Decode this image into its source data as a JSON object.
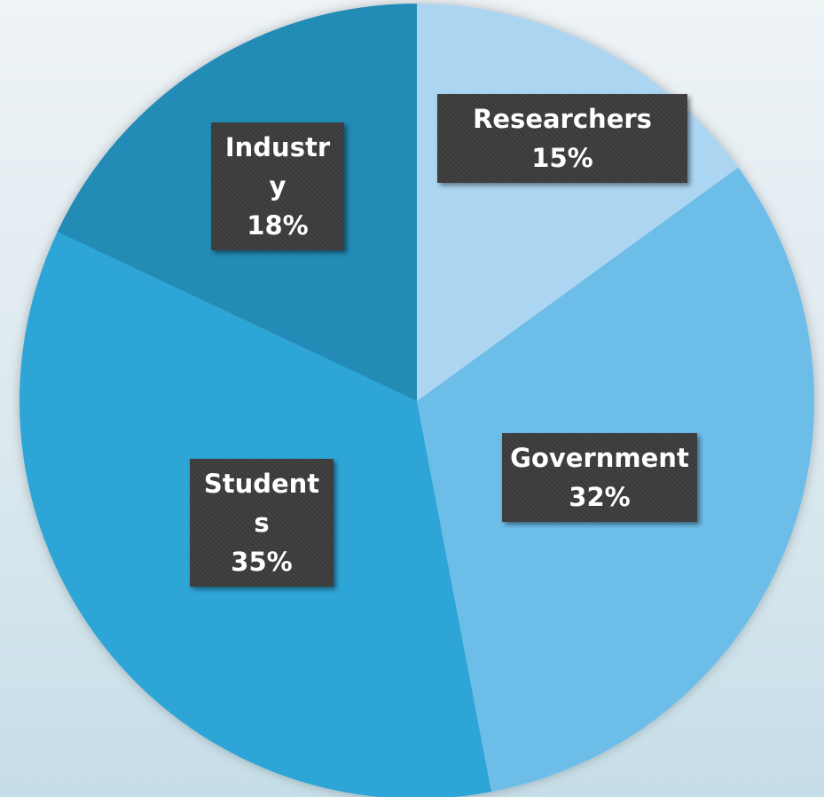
{
  "chart_data": {
    "type": "pie",
    "categories": [
      "Researchers",
      "Government",
      "Students",
      "Industry"
    ],
    "values": [
      15,
      32,
      35,
      18
    ],
    "value_labels": [
      "15%",
      "32%",
      "35%",
      "18%"
    ],
    "colors": [
      "#acd5f1",
      "#6dbde9",
      "#2ea5d7",
      "#238cb6"
    ]
  }
}
